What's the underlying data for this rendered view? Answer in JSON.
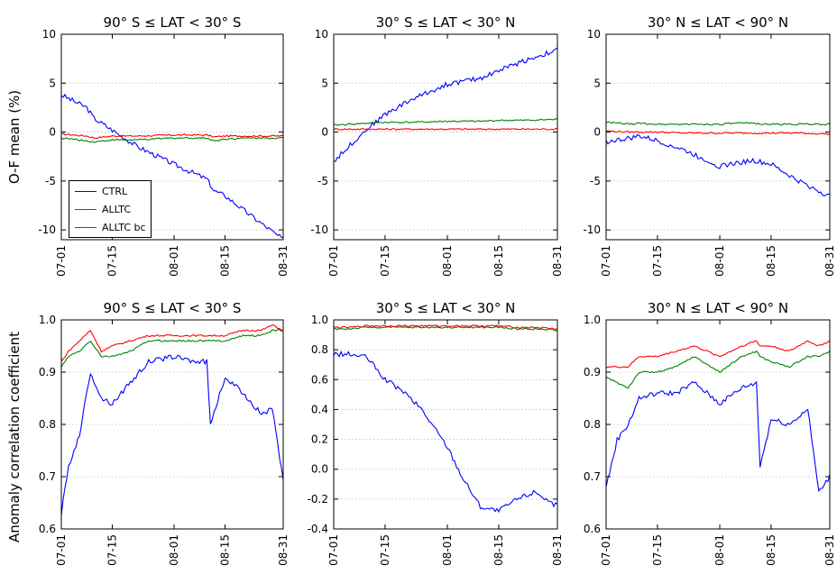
{
  "colors": {
    "CTRL": "#0000ff",
    "ALLTC": "#008000",
    "ALLTC bc": "#ff0000"
  },
  "legend": [
    "CTRL",
    "ALLTC",
    "ALLTC bc"
  ],
  "row_labels": [
    "O-F mean (%)",
    "Anomaly correlation coefficient"
  ],
  "chart_data": [
    {
      "type": "line",
      "title": "90° S ≤ LAT < 30° S",
      "ylabel": "O-F mean (%)",
      "xlabel": "",
      "ylim": [
        -11,
        10
      ],
      "yticks": [
        -10,
        -5,
        0,
        5,
        10
      ],
      "xticks": [
        "07-01",
        "07-15",
        "08-01",
        "08-15",
        "08-31"
      ],
      "x": [
        "07-01",
        "07-08",
        "07-10",
        "07-15",
        "07-22",
        "08-01",
        "08-10",
        "08-12",
        "08-15",
        "08-22",
        "08-31"
      ],
      "grid": "horizontal dotted",
      "legend_position": "lower-left",
      "series": [
        {
          "name": "CTRL",
          "values": [
            3.8,
            2.5,
            1.4,
            0.2,
            -1.5,
            -3.3,
            -4.8,
            -6.0,
            -6.5,
            -8.5,
            -11
          ]
        },
        {
          "name": "ALLTC",
          "values": [
            -0.6,
            -0.9,
            -1.0,
            -0.8,
            -0.8,
            -0.6,
            -0.6,
            -0.9,
            -0.7,
            -0.6,
            -0.6
          ]
        },
        {
          "name": "ALLTC bc",
          "values": [
            -0.2,
            -0.4,
            -0.6,
            -0.4,
            -0.4,
            -0.3,
            -0.3,
            -0.5,
            -0.4,
            -0.4,
            -0.4
          ]
        }
      ]
    },
    {
      "type": "line",
      "title": "30° S ≤ LAT < 30° N",
      "ylabel": "",
      "xlabel": "",
      "ylim": [
        -11,
        10
      ],
      "yticks": [
        -10,
        -5,
        0,
        5,
        10
      ],
      "xticks": [
        "07-01",
        "07-15",
        "08-01",
        "08-15",
        "08-31"
      ],
      "x": [
        "07-01",
        "07-05",
        "07-10",
        "07-15",
        "07-22",
        "08-01",
        "08-10",
        "08-15",
        "08-22",
        "08-31"
      ],
      "grid": "horizontal dotted",
      "series": [
        {
          "name": "CTRL",
          "values": [
            -3.0,
            -1.5,
            0.3,
            1.8,
            3.3,
            4.9,
            5.5,
            6.3,
            7.3,
            8.4
          ]
        },
        {
          "name": "ALLTC",
          "values": [
            0.7,
            0.8,
            0.9,
            1.0,
            1.0,
            1.1,
            1.1,
            1.2,
            1.2,
            1.3
          ]
        },
        {
          "name": "ALLTC bc",
          "values": [
            0.3,
            0.3,
            0.3,
            0.3,
            0.3,
            0.3,
            0.3,
            0.3,
            0.3,
            0.3
          ]
        }
      ]
    },
    {
      "type": "line",
      "title": "30° N ≤ LAT < 90° N",
      "ylabel": "",
      "xlabel": "",
      "ylim": [
        -11,
        10
      ],
      "yticks": [
        -10,
        -5,
        0,
        5,
        10
      ],
      "xticks": [
        "07-01",
        "07-15",
        "08-01",
        "08-15",
        "08-31"
      ],
      "x": [
        "07-01",
        "07-08",
        "07-10",
        "07-15",
        "07-22",
        "08-01",
        "08-05",
        "08-10",
        "08-15",
        "08-22",
        "08-31"
      ],
      "grid": "horizontal dotted",
      "series": [
        {
          "name": "CTRL",
          "values": [
            -1.0,
            -0.6,
            -0.4,
            -0.9,
            -1.8,
            -3.5,
            -3.2,
            -2.9,
            -3.3,
            -4.9,
            -6.6
          ]
        },
        {
          "name": "ALLTC",
          "values": [
            1.0,
            0.8,
            0.9,
            0.8,
            0.8,
            0.8,
            0.9,
            0.9,
            0.8,
            0.8,
            0.8
          ]
        },
        {
          "name": "ALLTC bc",
          "values": [
            0.1,
            0.0,
            0.0,
            0.0,
            -0.1,
            -0.1,
            -0.1,
            -0.1,
            -0.1,
            -0.1,
            -0.2
          ]
        }
      ]
    },
    {
      "type": "line",
      "title": "90° S ≤ LAT < 30° S",
      "ylabel": "Anomaly correlation coefficient",
      "xlabel": "",
      "ylim": [
        0.6,
        1.0
      ],
      "yticks": [
        0.6,
        0.7,
        0.8,
        0.9,
        1.0
      ],
      "xticks": [
        "07-01",
        "07-15",
        "08-01",
        "08-15",
        "08-31"
      ],
      "x": [
        "07-01",
        "07-03",
        "07-06",
        "07-09",
        "07-12",
        "07-15",
        "07-20",
        "07-25",
        "08-01",
        "08-07",
        "08-10",
        "08-11",
        "08-15",
        "08-20",
        "08-25",
        "08-28",
        "08-31"
      ],
      "grid": "horizontal dotted",
      "series": [
        {
          "name": "CTRL",
          "values": [
            0.63,
            0.72,
            0.78,
            0.9,
            0.85,
            0.84,
            0.88,
            0.92,
            0.93,
            0.92,
            0.92,
            0.8,
            0.89,
            0.86,
            0.82,
            0.83,
            0.69
          ]
        },
        {
          "name": "ALLTC",
          "values": [
            0.91,
            0.93,
            0.94,
            0.96,
            0.93,
            0.93,
            0.94,
            0.96,
            0.96,
            0.96,
            0.96,
            0.96,
            0.96,
            0.97,
            0.97,
            0.98,
            0.98
          ]
        },
        {
          "name": "ALLTC bc",
          "values": [
            0.92,
            0.94,
            0.96,
            0.98,
            0.94,
            0.95,
            0.96,
            0.97,
            0.97,
            0.97,
            0.97,
            0.97,
            0.97,
            0.98,
            0.98,
            0.99,
            0.98
          ]
        }
      ]
    },
    {
      "type": "line",
      "title": "30° S ≤ LAT < 30° N",
      "ylabel": "",
      "xlabel": "",
      "ylim": [
        -0.4,
        1.0
      ],
      "yticks": [
        -0.4,
        -0.2,
        0.0,
        0.2,
        0.4,
        0.6,
        0.8,
        1.0
      ],
      "xticks": [
        "07-01",
        "07-15",
        "08-01",
        "08-15",
        "08-31"
      ],
      "x": [
        "07-01",
        "07-05",
        "07-10",
        "07-15",
        "07-20",
        "07-25",
        "08-01",
        "08-05",
        "08-10",
        "08-15",
        "08-20",
        "08-25",
        "08-31"
      ],
      "grid": "horizontal dotted",
      "series": [
        {
          "name": "CTRL",
          "values": [
            0.77,
            0.77,
            0.75,
            0.6,
            0.52,
            0.4,
            0.15,
            -0.05,
            -0.25,
            -0.28,
            -0.2,
            -0.15,
            -0.25
          ]
        },
        {
          "name": "ALLTC",
          "values": [
            0.94,
            0.94,
            0.95,
            0.95,
            0.95,
            0.95,
            0.95,
            0.95,
            0.95,
            0.95,
            0.94,
            0.94,
            0.93
          ]
        },
        {
          "name": "ALLTC bc",
          "values": [
            0.95,
            0.95,
            0.96,
            0.96,
            0.96,
            0.96,
            0.96,
            0.96,
            0.96,
            0.96,
            0.95,
            0.95,
            0.94
          ]
        }
      ]
    },
    {
      "type": "line",
      "title": "30° N ≤ LAT < 90° N",
      "ylabel": "",
      "xlabel": "",
      "ylim": [
        0.6,
        1.0
      ],
      "yticks": [
        0.6,
        0.7,
        0.8,
        0.9,
        1.0
      ],
      "xticks": [
        "07-01",
        "07-15",
        "08-01",
        "08-15",
        "08-31"
      ],
      "x": [
        "07-01",
        "07-04",
        "07-07",
        "07-10",
        "07-15",
        "07-20",
        "07-25",
        "08-01",
        "08-07",
        "08-11",
        "08-12",
        "08-15",
        "08-20",
        "08-25",
        "08-28",
        "08-31"
      ],
      "grid": "horizontal dotted",
      "series": [
        {
          "name": "CTRL",
          "values": [
            0.68,
            0.77,
            0.8,
            0.85,
            0.86,
            0.86,
            0.88,
            0.84,
            0.87,
            0.88,
            0.72,
            0.81,
            0.8,
            0.83,
            0.67,
            0.7
          ]
        },
        {
          "name": "ALLTC",
          "values": [
            0.89,
            0.88,
            0.87,
            0.9,
            0.9,
            0.91,
            0.93,
            0.9,
            0.93,
            0.94,
            0.93,
            0.92,
            0.91,
            0.93,
            0.93,
            0.94
          ]
        },
        {
          "name": "ALLTC bc",
          "values": [
            0.91,
            0.91,
            0.91,
            0.93,
            0.93,
            0.94,
            0.95,
            0.93,
            0.95,
            0.96,
            0.95,
            0.95,
            0.94,
            0.96,
            0.95,
            0.96
          ]
        }
      ]
    }
  ]
}
